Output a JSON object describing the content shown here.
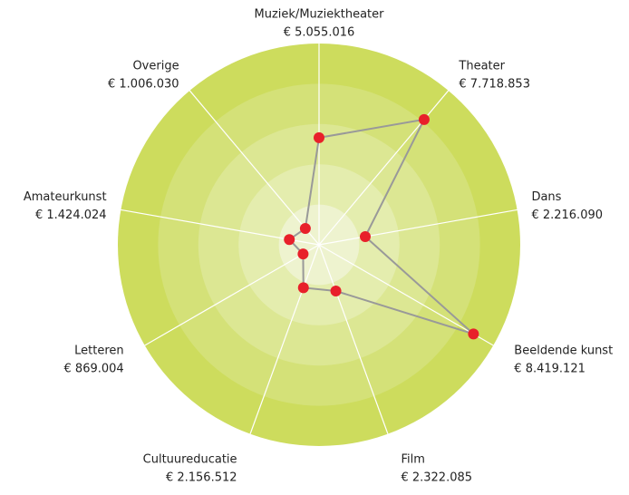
{
  "chart_data": {
    "type": "radar",
    "categories": [
      "Muziek/Muziektheater",
      "Theater",
      "Dans",
      "Beeldende kunst",
      "Film",
      "Cultuureducatie",
      "Letteren",
      "Amateurkunst",
      "Overige"
    ],
    "values": [
      5055016,
      7718853,
      2216090,
      8419121,
      2322085,
      2156512,
      869004,
      1424024,
      1006030
    ],
    "value_labels": [
      "€ 5.055.016",
      "€ 7.718.853",
      "€ 2.216.090",
      "€ 8.419.121",
      "€ 2.322.085",
      "€ 2.156.512",
      "€ 869.004",
      "€ 1.424.024",
      "€ 1.006.030"
    ],
    "rlim": [
      0,
      9500000
    ],
    "rticks": [
      1900000,
      3800000,
      5700000,
      7600000,
      9500000
    ],
    "ring_colors": [
      "#eef3cf",
      "#e4edae",
      "#dce793",
      "#d4e178",
      "#cddc5d"
    ],
    "line_color": "#999999",
    "marker_color": "#e8202a"
  }
}
